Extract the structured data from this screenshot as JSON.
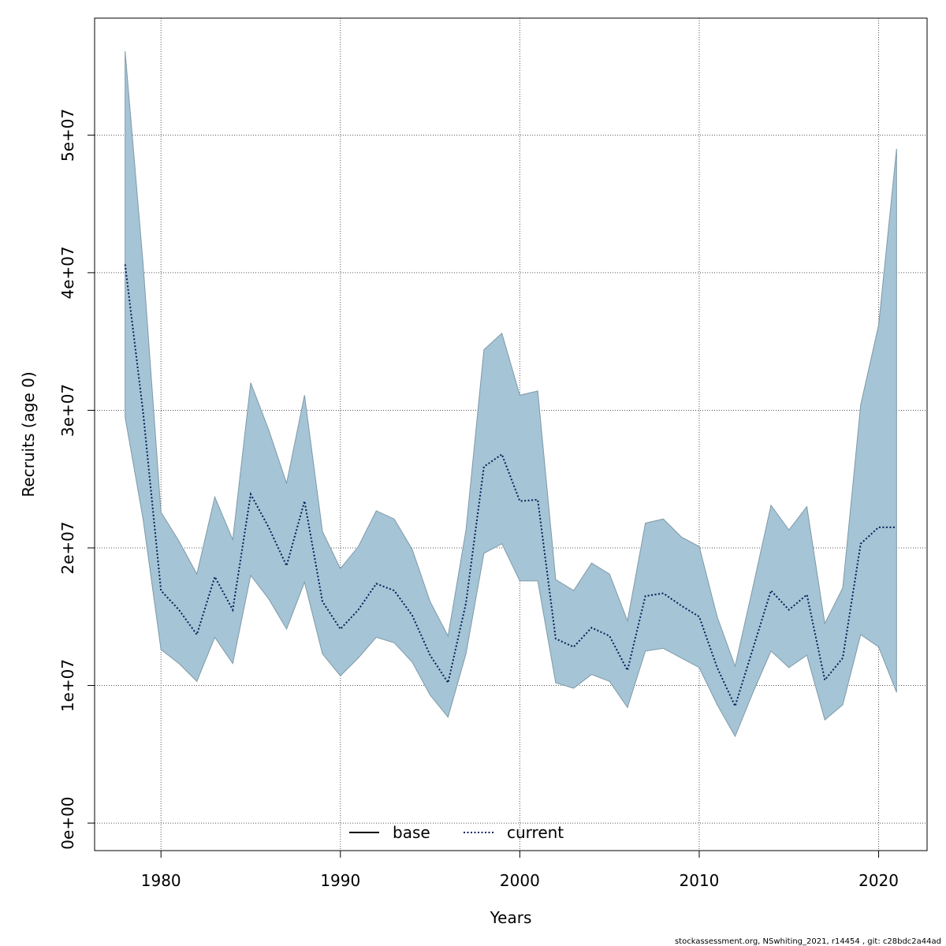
{
  "chart_data": {
    "type": "area",
    "xlabel": "Years",
    "ylabel": "Recruits (age 0)",
    "xlim": [
      1976.3,
      2022.7
    ],
    "ylim": [
      -2000000,
      58500000
    ],
    "x_ticks": [
      1980,
      1990,
      2000,
      2010,
      2020
    ],
    "y_ticks": [
      0,
      10000000,
      20000000,
      30000000,
      40000000,
      50000000
    ],
    "y_tick_labels": [
      "0e+00",
      "1e+07",
      "2e+07",
      "3e+07",
      "4e+07",
      "5e+07"
    ],
    "grid": true,
    "legend_position": "bottom-center",
    "legend": [
      "base",
      "current"
    ],
    "band_color": "#a5c4d5",
    "line_color": "#00205b",
    "years": [
      1978,
      1979,
      1980,
      1981,
      1982,
      1983,
      1984,
      1985,
      1986,
      1987,
      1988,
      1989,
      1990,
      1991,
      1992,
      1993,
      1994,
      1995,
      1996,
      1997,
      1998,
      1999,
      2000,
      2001,
      2002,
      2003,
      2004,
      2005,
      2006,
      2007,
      2008,
      2009,
      2010,
      2011,
      2012,
      2013,
      2014,
      2015,
      2016,
      2017,
      2018,
      2019,
      2020,
      2021
    ],
    "series": [
      {
        "name": "current",
        "style": "dotted",
        "values": [
          40600000,
          29900000,
          16900000,
          15500000,
          13700000,
          17900000,
          15500000,
          23900000,
          21500000,
          18700000,
          23400000,
          16100000,
          14100000,
          15500000,
          17400000,
          16900000,
          15100000,
          12200000,
          10200000,
          16000000,
          25900000,
          26800000,
          23400000,
          23500000,
          13400000,
          12800000,
          14200000,
          13600000,
          11100000,
          16500000,
          16700000,
          15800000,
          15000000,
          11300000,
          8500000,
          12700000,
          16900000,
          15500000,
          16600000,
          10400000,
          12000000,
          20300000,
          21500000,
          21500000
        ]
      }
    ],
    "band": {
      "upper": [
        56100000,
        40700000,
        22600000,
        20500000,
        18100000,
        23700000,
        20600000,
        32000000,
        28600000,
        24700000,
        31100000,
        21200000,
        18500000,
        20100000,
        22700000,
        22100000,
        19900000,
        16100000,
        13600000,
        21300000,
        34400000,
        35600000,
        31100000,
        31400000,
        17700000,
        16900000,
        18900000,
        18100000,
        14700000,
        21800000,
        22100000,
        20800000,
        20100000,
        15000000,
        11400000,
        17200000,
        23100000,
        21300000,
        23000000,
        14500000,
        17100000,
        30400000,
        36200000,
        49000000
      ],
      "lower": [
        29500000,
        22100000,
        12600000,
        11600000,
        10300000,
        13500000,
        11600000,
        18000000,
        16300000,
        14100000,
        17500000,
        12300000,
        10700000,
        12000000,
        13500000,
        13100000,
        11700000,
        9300000,
        7700000,
        12300000,
        19600000,
        20300000,
        17600000,
        17600000,
        10200000,
        9800000,
        10800000,
        10300000,
        8400000,
        12500000,
        12700000,
        12000000,
        11300000,
        8600000,
        6300000,
        9500000,
        12500000,
        11300000,
        12200000,
        7500000,
        8600000,
        13700000,
        12800000,
        9500000
      ]
    }
  },
  "footer_text": "stockassessment.org, NSwhiting_2021, r14454 , git: c28bdc2a44ad"
}
